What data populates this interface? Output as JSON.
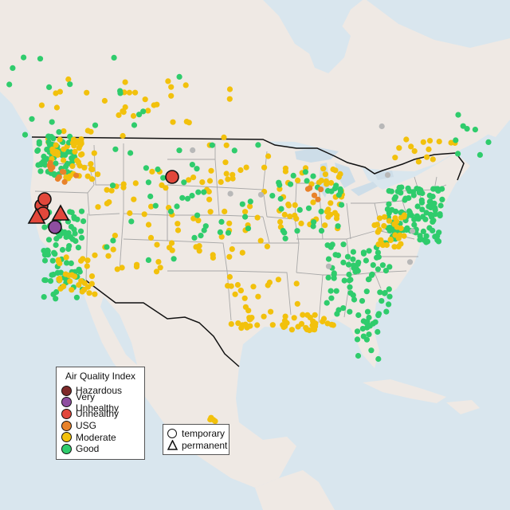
{
  "map": {
    "colors": {
      "ocean": "#d9e6ee",
      "land": "#efe9e4",
      "lake": "#cddde8",
      "state_border": "#a8a8a8",
      "country_border": "#111111",
      "hazardous": "#7e2a2a",
      "very_unhealthy": "#8e4ea0",
      "unhealthy": "#e2473b",
      "usg": "#e8822a",
      "moderate": "#f2c10c",
      "good": "#2fcc6c",
      "no_data": "#b8b8b8"
    },
    "icons": {
      "circle": "circle-marker-icon",
      "triangle": "triangle-marker-icon"
    }
  },
  "legend": {
    "title": "Air Quality Index",
    "items": [
      {
        "label": "Hazardous",
        "color": "#7e2a2a"
      },
      {
        "label": "Very Unhealthy",
        "color": "#8e4ea0"
      },
      {
        "label": "Unhealthy",
        "color": "#e2473b"
      },
      {
        "label": "USG",
        "color": "#e8822a"
      },
      {
        "label": "Moderate",
        "color": "#f2c10c"
      },
      {
        "label": "Good",
        "color": "#2fcc6c"
      }
    ]
  },
  "type_legend": {
    "items": [
      {
        "label": "temporary",
        "shape": "circle-marker-icon"
      },
      {
        "label": "permanent",
        "shape": "triangle-marker-icon"
      }
    ]
  }
}
